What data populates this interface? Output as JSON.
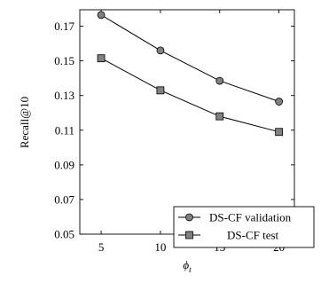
{
  "chart_data": {
    "type": "line",
    "x": [
      5,
      10,
      15,
      20
    ],
    "xticks": [
      "5",
      "10",
      "15",
      "20"
    ],
    "yticks": [
      "0.05",
      "0.07",
      "0.09",
      "0.11",
      "0.13",
      "0.15",
      "0.17"
    ],
    "xlim": [
      3.2,
      21.3
    ],
    "ylim": [
      0.05,
      0.1795
    ],
    "xlabel_base": "ϕ",
    "xlabel_sub": "t",
    "ylabel": "Recall@10",
    "grid": false,
    "legend_position": "bottom-right",
    "series": [
      {
        "name": "DS-CF validation",
        "marker": "circle",
        "color": "#808080",
        "values": [
          0.1765,
          0.156,
          0.1385,
          0.1265
        ]
      },
      {
        "name": "DS-CF test",
        "marker": "square",
        "color": "#808080",
        "values": [
          0.1515,
          0.133,
          0.118,
          0.109
        ]
      }
    ]
  }
}
